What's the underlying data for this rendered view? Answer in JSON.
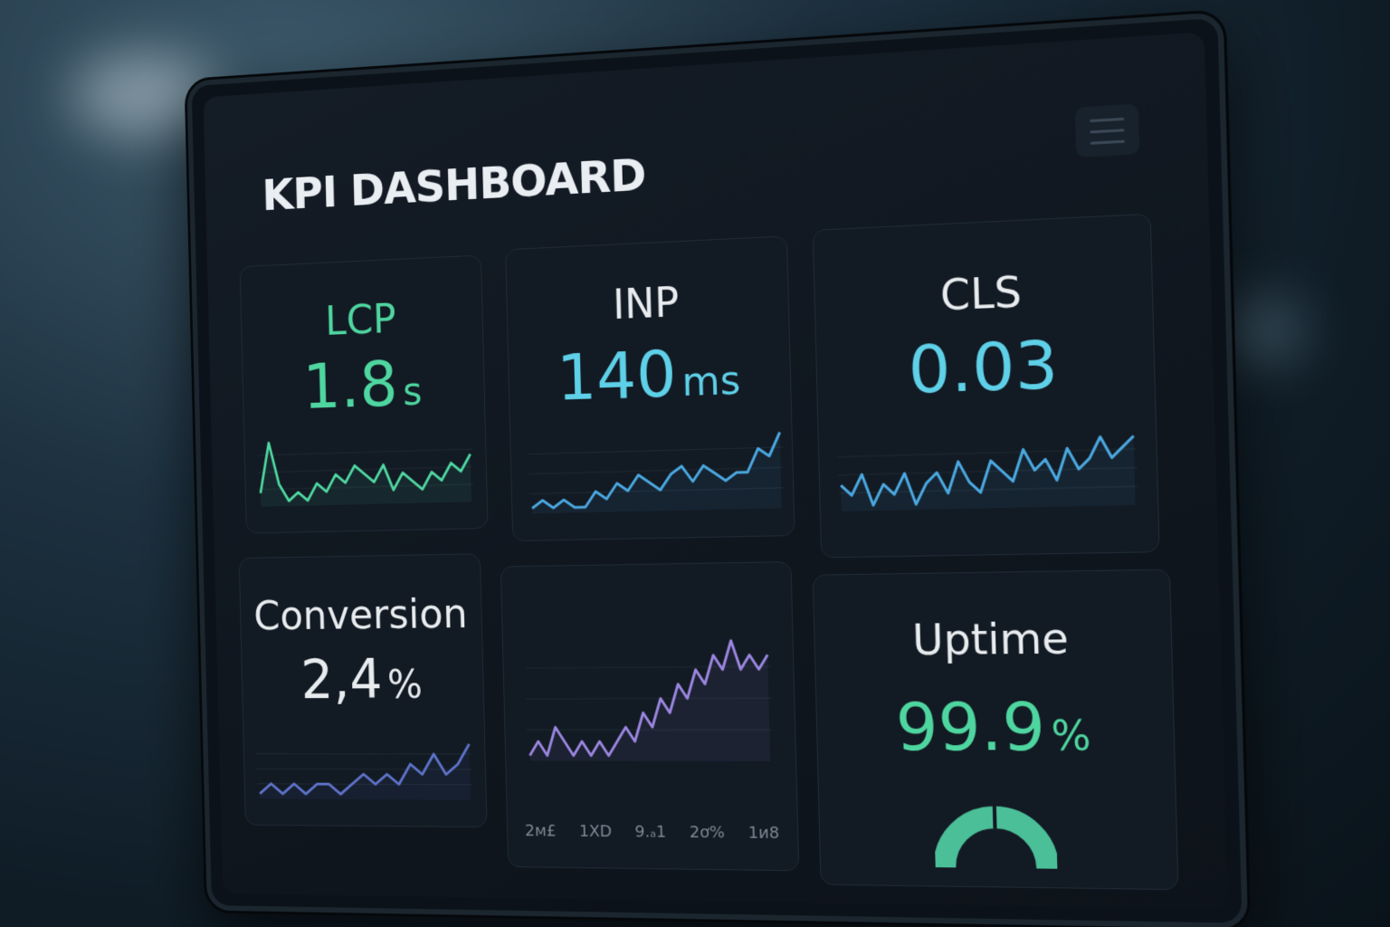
{
  "header": {
    "title": "KPI DASHBOARD",
    "menu_icon": "hamburger-menu-icon"
  },
  "colors": {
    "green": "#4fd6a0",
    "cyan": "#5ed0e8",
    "blue": "#4aa8e0",
    "purple": "#9b86e0",
    "indigo": "#5d72c8",
    "white": "#e8ecef"
  },
  "cards": {
    "lcp": {
      "label": "LCP",
      "value": "1.8",
      "unit": "s",
      "spark": [
        3,
        9,
        4,
        2,
        3,
        2,
        4,
        3,
        5,
        4,
        6,
        5,
        4,
        6,
        3,
        5,
        4,
        3,
        5,
        4,
        6,
        5,
        7
      ]
    },
    "inp": {
      "label": "INP",
      "value": "140",
      "unit": "ms",
      "spark": [
        2,
        3,
        2,
        3,
        2,
        2,
        4,
        3,
        5,
        4,
        6,
        5,
        4,
        6,
        7,
        5,
        7,
        6,
        5,
        6,
        6,
        9,
        8,
        11
      ]
    },
    "cls": {
      "label": "CLS",
      "value": "0.03",
      "unit": "",
      "spark": [
        4,
        3,
        5,
        2,
        4,
        3,
        5,
        2,
        4,
        5,
        3,
        6,
        4,
        3,
        6,
        5,
        4,
        7,
        5,
        6,
        4,
        7,
        5,
        6,
        8,
        6,
        7,
        8
      ]
    },
    "conversion": {
      "label": "Conversion",
      "value": "2,4",
      "unit": "%",
      "spark": [
        2,
        3,
        2,
        3,
        2,
        3,
        3,
        2,
        3,
        4,
        3,
        4,
        3,
        5,
        4,
        6,
        4,
        5,
        7
      ]
    },
    "trend": {
      "spark": [
        3,
        4,
        3,
        5,
        4,
        3,
        4,
        3,
        4,
        3,
        4,
        5,
        4,
        6,
        5,
        7,
        6,
        8,
        7,
        9,
        8,
        10,
        9,
        11,
        9,
        10,
        9,
        10
      ],
      "tick_labels": [
        "2м£",
        "1XD",
        "9.ₐ1",
        "2ơ%",
        "1и8"
      ]
    },
    "uptime": {
      "label": "Uptime",
      "value": "99.9",
      "unit": "%",
      "gauge_percent": 99.9
    }
  }
}
